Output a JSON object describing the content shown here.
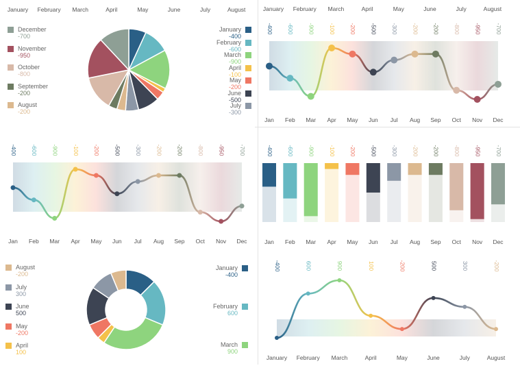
{
  "months_long": [
    "January",
    "February",
    "March",
    "April",
    "May",
    "June",
    "July",
    "August",
    "September",
    "October",
    "November",
    "December"
  ],
  "months_short": [
    "Jan",
    "Feb",
    "Mar",
    "Apr",
    "May",
    "Jun",
    "Jul",
    "Aug",
    "Sep",
    "Oct",
    "Nov",
    "Dec"
  ],
  "colors": [
    "#2a5f86",
    "#66b8c2",
    "#8ed47e",
    "#f4c14a",
    "#ef7763",
    "#3d4453",
    "#8c97a6",
    "#dcb98f",
    "#6d7b61",
    "#d8b9a8",
    "#a3515f",
    "#8e9f95"
  ],
  "chart_data": [
    {
      "type": "pie",
      "top_labels": [
        "January",
        "February",
        "March",
        "April",
        "May",
        "June",
        "July",
        "August"
      ],
      "categories": [
        "January",
        "February",
        "March",
        "April",
        "May",
        "June",
        "July",
        "August",
        "September",
        "October",
        "November",
        "December"
      ],
      "values": [
        -400,
        -600,
        -900,
        -100,
        -200,
        -500,
        -300,
        -200,
        -200,
        -800,
        -950,
        -700
      ],
      "display": [
        "-400",
        "-600",
        "-900",
        "-100",
        "-200",
        "-500",
        "-300",
        "-200",
        "-200",
        "-800",
        "-950",
        "-700"
      ],
      "slices": [
        400,
        600,
        900,
        100,
        200,
        500,
        300,
        200,
        200,
        800,
        950,
        700
      ],
      "legend_left": [
        11,
        10,
        9,
        8,
        7
      ],
      "legend_right": [
        0,
        1,
        2,
        3,
        4,
        5,
        6
      ]
    },
    {
      "type": "line",
      "categories": [
        "Jan",
        "Feb",
        "Mar",
        "Apr",
        "May",
        "Jun",
        "Jul",
        "Aug",
        "Sep",
        "Oct",
        "Nov",
        "Dec"
      ],
      "top_labels": [
        "-400",
        "-600",
        "-900",
        "-100",
        "-200",
        "-500",
        "-300",
        "-200",
        "-200",
        "-800",
        "-950",
        "-700"
      ],
      "values": [
        -400,
        -600,
        -900,
        -100,
        -200,
        -500,
        -300,
        -200,
        -200,
        -800,
        -950,
        -700
      ]
    },
    {
      "type": "line",
      "categories": [
        "Jan",
        "Feb",
        "Mar",
        "Apr",
        "May",
        "Jun",
        "Jul",
        "Aug",
        "Sep",
        "Oct",
        "Nov",
        "Dec"
      ],
      "top_labels": [
        "-400",
        "-600",
        "-900",
        "-100",
        "-200",
        "-500",
        "-300",
        "-200",
        "-200",
        "-800",
        "-950",
        "-700"
      ],
      "values": [
        -400,
        -600,
        -900,
        -100,
        -200,
        -500,
        -300,
        -200,
        -200,
        -800,
        -950,
        -700
      ]
    },
    {
      "type": "bar",
      "categories": [
        "Jan",
        "Feb",
        "Mar",
        "Apr",
        "May",
        "Jun",
        "Jul",
        "Aug",
        "Sep",
        "Oct",
        "Nov",
        "Dec"
      ],
      "top_labels": [
        "-400",
        "-600",
        "-900",
        "-100",
        "-200",
        "-500",
        "-300",
        "-200",
        "-200",
        "-800",
        "-950",
        "-700"
      ],
      "values": [
        -400,
        -600,
        -900,
        -100,
        -200,
        -500,
        -300,
        -200,
        -200,
        -800,
        -950,
        -700
      ],
      "ylim": [
        -1000,
        0
      ]
    },
    {
      "type": "pie",
      "donut": true,
      "categories": [
        "January",
        "February",
        "March",
        "April",
        "May",
        "June",
        "July",
        "August"
      ],
      "values": [
        -400,
        600,
        900,
        100,
        -200,
        500,
        300,
        -200
      ],
      "display": [
        "-400",
        "600",
        "900",
        "100",
        "-200",
        "500",
        "300",
        "-200"
      ],
      "slices": [
        400,
        600,
        900,
        100,
        200,
        500,
        300,
        200
      ],
      "legend_left": [
        7,
        6,
        5,
        4,
        3
      ],
      "legend_right": [
        0,
        1,
        2
      ]
    },
    {
      "type": "line",
      "categories": [
        "January",
        "February",
        "March",
        "April",
        "May",
        "June",
        "July",
        "August"
      ],
      "top_labels": [
        "-400",
        "600",
        "900",
        "100",
        "-200",
        "500",
        "300",
        "-200"
      ],
      "values": [
        -400,
        600,
        900,
        100,
        -200,
        500,
        300,
        -200
      ]
    }
  ]
}
